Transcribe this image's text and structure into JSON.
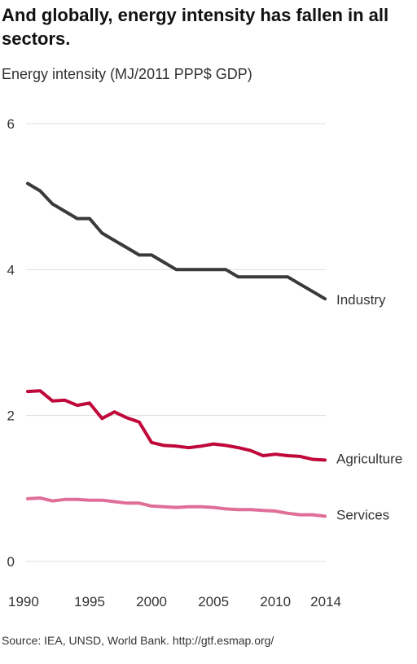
{
  "header": {
    "title": "And globally, energy intensity has fallen in all sectors.",
    "subtitle": "Energy intensity (MJ/2011 PPP$ GDP)"
  },
  "footer": {
    "source": "Source: IEA, UNSD, World Bank. http://gtf.esmap.org/"
  },
  "chart_data": {
    "type": "line",
    "title": "And globally, energy intensity has fallen in all sectors.",
    "ylabel": "Energy intensity (MJ/2011 PPP$ GDP)",
    "xlabel": "",
    "ylim": [
      0,
      6
    ],
    "xlim": [
      1990,
      2014
    ],
    "y_ticks": [
      "0",
      "2",
      "4",
      "6"
    ],
    "x_ticks": [
      "1990",
      "1995",
      "2000",
      "2005",
      "2010",
      "2014"
    ],
    "grid": true,
    "legend": "direct labels at line ends",
    "x": [
      1990,
      1991,
      1992,
      1993,
      1994,
      1995,
      1996,
      1997,
      1998,
      1999,
      2000,
      2001,
      2002,
      2003,
      2004,
      2005,
      2006,
      2007,
      2008,
      2009,
      2010,
      2011,
      2012,
      2013,
      2014
    ],
    "series": [
      {
        "name": "Industry",
        "color": "#3a3a3a",
        "values": [
          5.18,
          5.08,
          4.9,
          4.8,
          4.7,
          4.7,
          4.5,
          4.4,
          4.3,
          4.2,
          4.2,
          4.1,
          4.0,
          4.0,
          4.0,
          4.0,
          4.0,
          3.9,
          3.9,
          3.9,
          3.9,
          3.9,
          3.8,
          3.7,
          3.6
        ]
      },
      {
        "name": "Agriculture",
        "color": "#c0073a",
        "values": [
          2.33,
          2.34,
          2.2,
          2.21,
          2.14,
          2.17,
          1.96,
          2.05,
          1.97,
          1.91,
          1.63,
          1.59,
          1.58,
          1.56,
          1.58,
          1.61,
          1.59,
          1.56,
          1.52,
          1.45,
          1.47,
          1.45,
          1.44,
          1.4,
          1.39
        ]
      },
      {
        "name": "Services",
        "color": "#df6f99",
        "values": [
          0.86,
          0.87,
          0.83,
          0.85,
          0.85,
          0.84,
          0.84,
          0.82,
          0.8,
          0.8,
          0.76,
          0.75,
          0.74,
          0.75,
          0.75,
          0.74,
          0.72,
          0.71,
          0.71,
          0.7,
          0.69,
          0.66,
          0.64,
          0.64,
          0.62
        ]
      }
    ]
  }
}
